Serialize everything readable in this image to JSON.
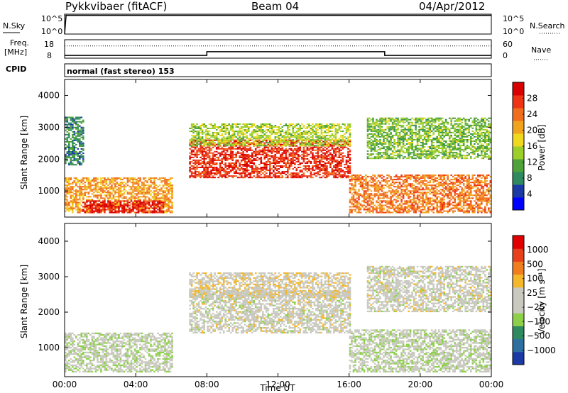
{
  "header": {
    "radar": "Pykkvibaer (fitACF)",
    "beam": "Beam 04",
    "date": "04/Apr/2012"
  },
  "side_labels": {
    "nsky": "N.Sky",
    "nsearch": "N.Search",
    "freq": "Freq.",
    "freq_unit": "[MHz]",
    "nave": "Nave",
    "cpid": "CPID",
    "cpid_value": "normal (fast stereo) 153"
  },
  "colors": {
    "power": [
      "#0000ff",
      "#1c3aa6",
      "#2f8a5f",
      "#4fa23a",
      "#9ccf2a",
      "#f0d81e",
      "#f2a31e",
      "#f06e1e",
      "#ee3414",
      "#d80000"
    ],
    "velocity": [
      "#1c3aa6",
      "#2c6fa0",
      "#2f8a5f",
      "#8ed04a",
      "#c9c9c0",
      "#c9c9c0",
      "#f5b82a",
      "#f07e1e",
      "#e8401a",
      "#e00000"
    ]
  },
  "chart_data": [
    {
      "type": "line",
      "panel": "noise",
      "title": "",
      "left_axis_ticks": [
        "10^5",
        "10^0"
      ],
      "right_axis_ticks": [
        "10^5",
        "10^0"
      ],
      "series": [
        {
          "name": "N.Sky",
          "x": [
            "00:00",
            "00:05",
            "06:00",
            "12:00",
            "18:00",
            "24:00"
          ],
          "values": [
            1,
            100000,
            100000,
            100000,
            100000,
            100000
          ]
        },
        {
          "name": "N.Search",
          "x": [
            "00:00",
            "24:00"
          ],
          "values": [
            100000,
            100000
          ]
        }
      ]
    },
    {
      "type": "line",
      "panel": "frequency",
      "left_axis_ticks": [
        "18",
        "8"
      ],
      "right_axis_ticks": [
        "60",
        "0"
      ],
      "series": [
        {
          "name": "Freq.",
          "x": [
            "00:00",
            "08:00",
            "08:00",
            "18:00",
            "18:00",
            "24:00"
          ],
          "values": [
            9.5,
            9.5,
            11.5,
            11.5,
            9.5,
            9.5
          ]
        },
        {
          "name": "Nave",
          "x": [
            "00:00",
            "24:00"
          ],
          "values": [
            40,
            40
          ]
        }
      ]
    },
    {
      "type": "heatmap",
      "panel": "power",
      "ylabel": "Slant Range [km]",
      "colorbar_label": "Power [dB]",
      "colorbar_ticks": [
        "28",
        "24",
        "20",
        "16",
        "12",
        "8",
        "4"
      ],
      "y_ticks": [
        "4000",
        "3000",
        "2000",
        "1000"
      ],
      "ylim": [
        180,
        4500
      ],
      "xlim": [
        "00:00",
        "24:00"
      ],
      "clim": [
        0,
        30
      ],
      "echo_regions": [
        {
          "start": "00:00",
          "end": "06:00",
          "range_min": 300,
          "range_max": 1400,
          "power": 20
        },
        {
          "start": "01:00",
          "end": "05:30",
          "range_min": 300,
          "range_max": 700,
          "power": 28
        },
        {
          "start": "00:00",
          "end": "01:00",
          "range_min": 1800,
          "range_max": 3300,
          "power": 8
        },
        {
          "start": "07:00",
          "end": "16:00",
          "range_min": 1400,
          "range_max": 2600,
          "power": 26
        },
        {
          "start": "07:00",
          "end": "16:00",
          "range_min": 2400,
          "range_max": 3100,
          "power": 14
        },
        {
          "start": "16:00",
          "end": "24:00",
          "range_min": 300,
          "range_max": 1500,
          "power": 22
        },
        {
          "start": "17:00",
          "end": "24:00",
          "range_min": 2000,
          "range_max": 3300,
          "power": 12
        }
      ]
    },
    {
      "type": "heatmap",
      "panel": "velocity",
      "ylabel": "Slant Range [km]",
      "colorbar_label": "Velocity [m s⁻¹]",
      "colorbar_ticks": [
        "1000",
        "500",
        "100",
        "25",
        "−25",
        "−100",
        "−500",
        "−1000"
      ],
      "y_ticks": [
        "4000",
        "3000",
        "2000",
        "1000"
      ],
      "ylim": [
        180,
        4500
      ],
      "xlim": [
        "00:00",
        "24:00"
      ],
      "clim": [
        -1000,
        1000
      ],
      "echo_regions": [
        {
          "start": "00:00",
          "end": "06:00",
          "range_min": 300,
          "range_max": 1400,
          "velocity": -100
        },
        {
          "start": "07:00",
          "end": "16:00",
          "range_min": 1400,
          "range_max": 2600,
          "velocity": 0
        },
        {
          "start": "07:00",
          "end": "16:00",
          "range_min": 2400,
          "range_max": 3100,
          "velocity": 100
        },
        {
          "start": "16:00",
          "end": "24:00",
          "range_min": 300,
          "range_max": 1500,
          "velocity": -100
        },
        {
          "start": "17:00",
          "end": "24:00",
          "range_min": 2000,
          "range_max": 3300,
          "velocity": 0
        }
      ]
    }
  ],
  "x_axis": {
    "ticks": [
      "00:00",
      "04:00",
      "08:00",
      "12:00",
      "16:00",
      "20:00",
      "00:00"
    ],
    "label": "Time UT"
  }
}
